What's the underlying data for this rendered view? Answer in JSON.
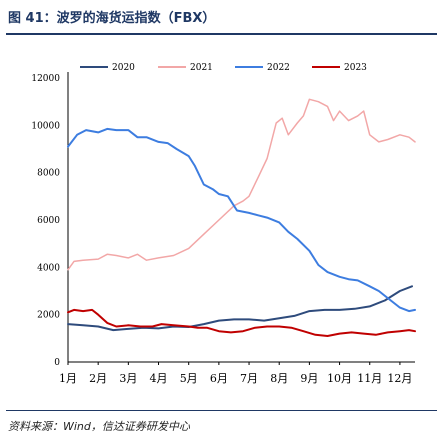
{
  "figure": {
    "title": "图 41：波罗的海货运指数（FBX）",
    "source": "资料来源：Wind，信达证券研发中心"
  },
  "chart_data": {
    "type": "line",
    "x": [
      "1月",
      "2月",
      "3月",
      "4月",
      "5月",
      "6月",
      "7月",
      "8月",
      "9月",
      "10月",
      "11月",
      "12月"
    ],
    "ylim": [
      0,
      12000
    ],
    "yticks": [
      0,
      2000,
      4000,
      6000,
      8000,
      10000,
      12000
    ],
    "grid": false,
    "legend_position": "top",
    "series": [
      {
        "name": "2020",
        "color": "#2e4b7c",
        "width": 2,
        "points": [
          [
            1,
            1600
          ],
          [
            1.5,
            1550
          ],
          [
            2,
            1500
          ],
          [
            2.5,
            1350
          ],
          [
            3,
            1400
          ],
          [
            3.5,
            1450
          ],
          [
            4,
            1420
          ],
          [
            4.5,
            1500
          ],
          [
            5,
            1480
          ],
          [
            5.5,
            1600
          ],
          [
            6,
            1750
          ],
          [
            6.5,
            1800
          ],
          [
            7,
            1800
          ],
          [
            7.5,
            1750
          ],
          [
            8,
            1850
          ],
          [
            8.5,
            1950
          ],
          [
            9,
            2150
          ],
          [
            9.5,
            2200
          ],
          [
            10,
            2200
          ],
          [
            10.5,
            2250
          ],
          [
            11,
            2350
          ],
          [
            11.5,
            2600
          ],
          [
            12,
            3000
          ],
          [
            12.4,
            3200
          ]
        ]
      },
      {
        "name": "2021",
        "color": "#f2a7a7",
        "width": 1.5,
        "points": [
          [
            1,
            3900
          ],
          [
            1.2,
            4250
          ],
          [
            1.5,
            4300
          ],
          [
            2,
            4350
          ],
          [
            2.3,
            4550
          ],
          [
            2.6,
            4500
          ],
          [
            3,
            4400
          ],
          [
            3.3,
            4550
          ],
          [
            3.6,
            4300
          ],
          [
            4,
            4400
          ],
          [
            4.5,
            4500
          ],
          [
            5,
            4800
          ],
          [
            5.5,
            5400
          ],
          [
            6,
            6000
          ],
          [
            6.5,
            6600
          ],
          [
            6.8,
            6800
          ],
          [
            7,
            7000
          ],
          [
            7.3,
            7800
          ],
          [
            7.6,
            8600
          ],
          [
            7.9,
            10100
          ],
          [
            8.1,
            10300
          ],
          [
            8.3,
            9600
          ],
          [
            8.6,
            10100
          ],
          [
            8.8,
            10400
          ],
          [
            9,
            11100
          ],
          [
            9.3,
            11000
          ],
          [
            9.6,
            10800
          ],
          [
            9.8,
            10200
          ],
          [
            10,
            10600
          ],
          [
            10.3,
            10200
          ],
          [
            10.6,
            10400
          ],
          [
            10.8,
            10600
          ],
          [
            11,
            9600
          ],
          [
            11.3,
            9300
          ],
          [
            11.6,
            9400
          ],
          [
            12,
            9600
          ],
          [
            12.3,
            9500
          ],
          [
            12.5,
            9300
          ]
        ]
      },
      {
        "name": "2022",
        "color": "#3d7de0",
        "width": 2,
        "points": [
          [
            1,
            9100
          ],
          [
            1.3,
            9600
          ],
          [
            1.6,
            9800
          ],
          [
            2,
            9700
          ],
          [
            2.3,
            9850
          ],
          [
            2.6,
            9800
          ],
          [
            3,
            9800
          ],
          [
            3.3,
            9500
          ],
          [
            3.6,
            9500
          ],
          [
            4,
            9300
          ],
          [
            4.3,
            9250
          ],
          [
            4.6,
            9000
          ],
          [
            5,
            8700
          ],
          [
            5.2,
            8300
          ],
          [
            5.5,
            7500
          ],
          [
            5.8,
            7300
          ],
          [
            6,
            7100
          ],
          [
            6.3,
            7000
          ],
          [
            6.6,
            6400
          ],
          [
            7,
            6300
          ],
          [
            7.3,
            6200
          ],
          [
            7.6,
            6100
          ],
          [
            8,
            5900
          ],
          [
            8.3,
            5500
          ],
          [
            8.6,
            5200
          ],
          [
            9,
            4700
          ],
          [
            9.3,
            4100
          ],
          [
            9.6,
            3800
          ],
          [
            10,
            3600
          ],
          [
            10.3,
            3500
          ],
          [
            10.6,
            3450
          ],
          [
            11,
            3200
          ],
          [
            11.3,
            3000
          ],
          [
            11.6,
            2700
          ],
          [
            12,
            2300
          ],
          [
            12.3,
            2150
          ],
          [
            12.5,
            2200
          ]
        ]
      },
      {
        "name": "2023",
        "color": "#c00000",
        "width": 2,
        "points": [
          [
            1,
            2100
          ],
          [
            1.2,
            2200
          ],
          [
            1.5,
            2150
          ],
          [
            1.8,
            2200
          ],
          [
            2,
            2000
          ],
          [
            2.3,
            1650
          ],
          [
            2.6,
            1500
          ],
          [
            3,
            1550
          ],
          [
            3.4,
            1500
          ],
          [
            3.8,
            1500
          ],
          [
            4.1,
            1600
          ],
          [
            4.5,
            1550
          ],
          [
            5,
            1500
          ],
          [
            5.3,
            1450
          ],
          [
            5.6,
            1450
          ],
          [
            6,
            1300
          ],
          [
            6.4,
            1250
          ],
          [
            6.8,
            1300
          ],
          [
            7.2,
            1450
          ],
          [
            7.6,
            1500
          ],
          [
            8,
            1500
          ],
          [
            8.4,
            1450
          ],
          [
            8.8,
            1300
          ],
          [
            9.2,
            1150
          ],
          [
            9.6,
            1100
          ],
          [
            10,
            1200
          ],
          [
            10.4,
            1250
          ],
          [
            10.8,
            1200
          ],
          [
            11.2,
            1150
          ],
          [
            11.6,
            1250
          ],
          [
            12,
            1300
          ],
          [
            12.3,
            1350
          ],
          [
            12.5,
            1300
          ]
        ]
      }
    ]
  }
}
